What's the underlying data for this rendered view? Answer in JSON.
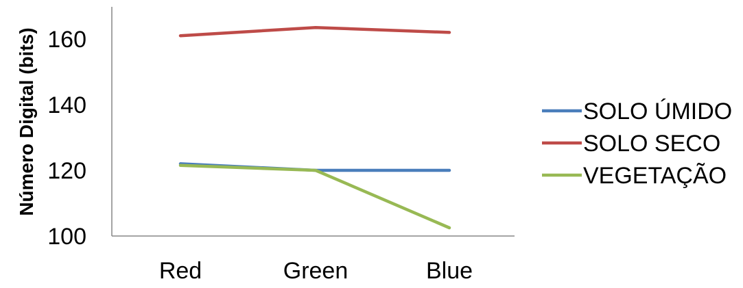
{
  "chart_data": {
    "type": "line",
    "title": "",
    "xlabel": "",
    "ylabel": "Número Digital (bits)",
    "categories": [
      "Red",
      "Green",
      "Blue"
    ],
    "ylim": [
      100,
      170
    ],
    "yticks": [
      100,
      120,
      140,
      160
    ],
    "grid": false,
    "legend_position": "right",
    "series": [
      {
        "name": "SOLO ÚMIDO",
        "color": "#4A7EBB",
        "values": [
          122,
          120,
          120
        ]
      },
      {
        "name": "SOLO SECO",
        "color": "#BE4B48",
        "values": [
          161,
          163.5,
          162
        ]
      },
      {
        "name": "VEGETAÇÃO",
        "color": "#98B954",
        "values": [
          121.5,
          120,
          102.5
        ]
      }
    ]
  }
}
